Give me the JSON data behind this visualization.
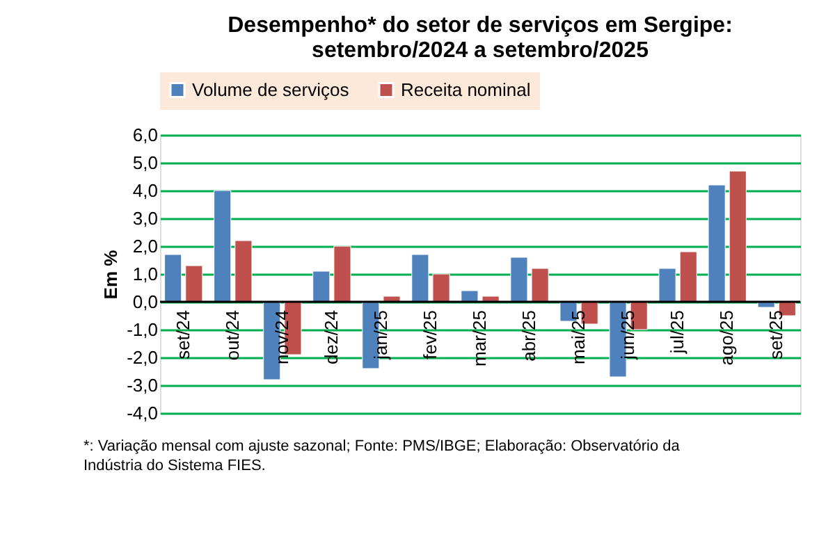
{
  "chart_data": {
    "type": "bar",
    "title": "Desempenho* do setor de serviços em Sergipe:\nsetembro/2024 a setembro/2025",
    "ylabel": "Em %",
    "categories": [
      "set/24",
      "out/24",
      "nov/24",
      "dez/24",
      "jan/25",
      "fev/25",
      "mar/25",
      "abr/25",
      "mai/25",
      "jun/25",
      "jul/25",
      "ago/25",
      "set/25"
    ],
    "series": [
      {
        "name": "Volume de serviços",
        "color": "#4f81bd",
        "values": [
          1.7,
          4.0,
          -2.8,
          1.1,
          -2.4,
          1.7,
          0.4,
          1.6,
          -0.7,
          -2.7,
          1.2,
          4.2,
          -0.2
        ]
      },
      {
        "name": "Receita nominal",
        "color": "#c0504d",
        "values": [
          1.3,
          2.2,
          -1.9,
          2.0,
          0.2,
          1.0,
          0.2,
          1.2,
          -0.8,
          -1.0,
          1.8,
          4.7,
          -0.5
        ]
      }
    ],
    "ylim": [
      -4.0,
      6.0
    ],
    "yticks": [
      {
        "value": -4,
        "label": "-4,0"
      },
      {
        "value": -3,
        "label": "-3,0"
      },
      {
        "value": -2,
        "label": "-2,0"
      },
      {
        "value": -1,
        "label": "-1,0"
      },
      {
        "value": 0,
        "label": "0,0"
      },
      {
        "value": 1,
        "label": "1,0"
      },
      {
        "value": 2,
        "label": "2,0"
      },
      {
        "value": 3,
        "label": "3,0"
      },
      {
        "value": 4,
        "label": "4,0"
      },
      {
        "value": 5,
        "label": "5,0"
      },
      {
        "value": 6,
        "label": "6,0"
      }
    ],
    "grid": "y",
    "legend": "top",
    "annotations": [
      "*: Variação mensal com ajuste sazonal; Fonte: PMS/IBGE; Elaboração: Observatório da Indústria do Sistema FIES."
    ]
  }
}
